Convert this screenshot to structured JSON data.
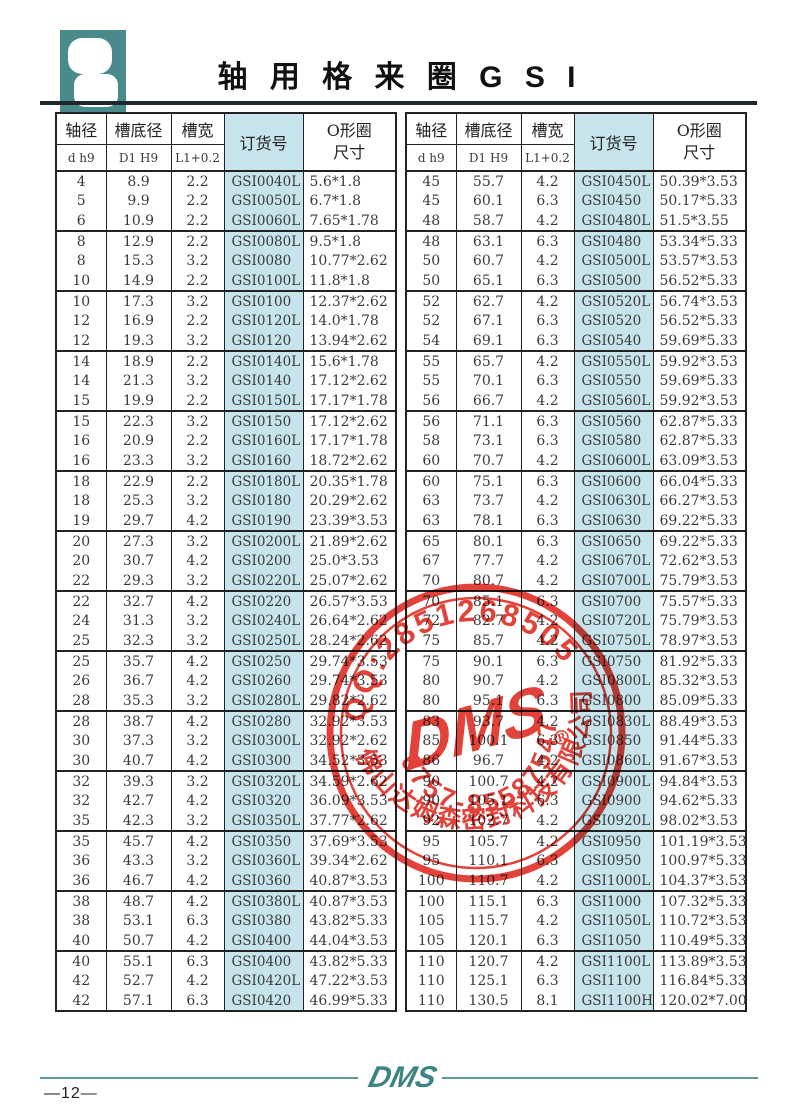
{
  "page": {
    "title": "轴 用 格 来 圈 G S I",
    "page_number": "—12—"
  },
  "columns": {
    "shaft_dia": "轴径",
    "shaft_dia_sub": "d h9",
    "groove_bottom_dia": "槽底径",
    "groove_bottom_dia_sub": "D1 H9",
    "groove_width": "槽宽",
    "groove_width_sub": "L1+0.2",
    "order_no": "订货号",
    "oring_line1": "O形圈",
    "oring_line2": "尺寸"
  },
  "colors": {
    "accent_teal": "#4a8a8a",
    "order_col_bg": "#c7e3eb",
    "stamp_red": "#dd2016",
    "rule_dark": "#20262b"
  },
  "stamp": {
    "qq": "QQ:2851268505",
    "company": "佛山达姆森密封科技有限公司",
    "phone": "0757-85587547",
    "logo": "DMS",
    "registered": "®"
  },
  "footer": {
    "logo": "DMS"
  },
  "tables": {
    "left": {
      "groups": [
        [
          [
            "4",
            "8.9",
            "2.2",
            "GSI0040L",
            "5.6*1.8"
          ],
          [
            "5",
            "9.9",
            "2.2",
            "GSI0050L",
            "6.7*1.8"
          ],
          [
            "6",
            "10.9",
            "2.2",
            "GSI0060L",
            "7.65*1.78"
          ]
        ],
        [
          [
            "8",
            "12.9",
            "2.2",
            "GSI0080L",
            "9.5*1.8"
          ],
          [
            "8",
            "15.3",
            "3.2",
            "GSI0080",
            "10.77*2.62"
          ],
          [
            "10",
            "14.9",
            "2.2",
            "GSI0100L",
            "11.8*1.8"
          ]
        ],
        [
          [
            "10",
            "17.3",
            "3.2",
            "GSI0100",
            "12.37*2.62"
          ],
          [
            "12",
            "16.9",
            "2.2",
            "GSI0120L",
            "14.0*1.78"
          ],
          [
            "12",
            "19.3",
            "3.2",
            "GSI0120",
            "13.94*2.62"
          ]
        ],
        [
          [
            "14",
            "18.9",
            "2.2",
            "GSI0140L",
            "15.6*1.78"
          ],
          [
            "14",
            "21.3",
            "3.2",
            "GSI0140",
            "17.12*2.62"
          ],
          [
            "15",
            "19.9",
            "2.2",
            "GSI0150L",
            "17.17*1.78"
          ]
        ],
        [
          [
            "15",
            "22.3",
            "3.2",
            "GSI0150",
            "17.12*2.62"
          ],
          [
            "16",
            "20.9",
            "2.2",
            "GSI0160L",
            "17.17*1.78"
          ],
          [
            "16",
            "23.3",
            "3.2",
            "GSI0160",
            "18.72*2.62"
          ]
        ],
        [
          [
            "18",
            "22.9",
            "2.2",
            "GSI0180L",
            "20.35*1.78"
          ],
          [
            "18",
            "25.3",
            "3.2",
            "GSI0180",
            "20.29*2.62"
          ],
          [
            "19",
            "29.7",
            "4.2",
            "GSI0190",
            "23.39*3.53"
          ]
        ],
        [
          [
            "20",
            "27.3",
            "3.2",
            "GSI0200L",
            "21.89*2.62"
          ],
          [
            "20",
            "30.7",
            "4.2",
            "GSI0200",
            "25.0*3.53"
          ],
          [
            "22",
            "29.3",
            "3.2",
            "GSI0220L",
            "25.07*2.62"
          ]
        ],
        [
          [
            "22",
            "32.7",
            "4.2",
            "GSI0220",
            "26.57*3.53"
          ],
          [
            "24",
            "31.3",
            "3.2",
            "GSI0240L",
            "26.64*2.62"
          ],
          [
            "25",
            "32.3",
            "3.2",
            "GSI0250L",
            "28.24*2.62"
          ]
        ],
        [
          [
            "25",
            "35.7",
            "4.2",
            "GSI0250",
            "29.74*3.53"
          ],
          [
            "26",
            "36.7",
            "4.2",
            "GSI0260",
            "29.74*3.53"
          ],
          [
            "28",
            "35.3",
            "3.2",
            "GSI0280L",
            "29.82*2.62"
          ]
        ],
        [
          [
            "28",
            "38.7",
            "4.2",
            "GSI0280",
            "32.92*3.53"
          ],
          [
            "30",
            "37.3",
            "3.2",
            "GSI0300L",
            "32.92*2.62"
          ],
          [
            "30",
            "40.7",
            "4.2",
            "GSI0300",
            "34.52*3.53"
          ]
        ],
        [
          [
            "32",
            "39.3",
            "3.2",
            "GSI0320L",
            "34.59*2.62"
          ],
          [
            "32",
            "42.7",
            "4.2",
            "GSI0320",
            "36.09*3.53"
          ],
          [
            "35",
            "42.3",
            "3.2",
            "GSI0350L",
            "37.77*2.62"
          ]
        ],
        [
          [
            "35",
            "45.7",
            "4.2",
            "GSI0350",
            "37.69*3.53"
          ],
          [
            "36",
            "43.3",
            "3.2",
            "GSI0360L",
            "39.34*2.62"
          ],
          [
            "36",
            "46.7",
            "4.2",
            "GSI0360",
            "40.87*3.53"
          ]
        ],
        [
          [
            "38",
            "48.7",
            "4.2",
            "GSI0380L",
            "40.87*3.53"
          ],
          [
            "38",
            "53.1",
            "6.3",
            "GSI0380",
            "43.82*5.33"
          ],
          [
            "40",
            "50.7",
            "4.2",
            "GSI0400",
            "44.04*3.53"
          ]
        ],
        [
          [
            "40",
            "55.1",
            "6.3",
            "GSI0400",
            "43.82*5.33"
          ],
          [
            "42",
            "52.7",
            "4.2",
            "GSI0420L",
            "47.22*3.53"
          ],
          [
            "42",
            "57.1",
            "6.3",
            "GSI0420",
            "46.99*5.33"
          ]
        ]
      ]
    },
    "right": {
      "groups": [
        [
          [
            "45",
            "55.7",
            "4.2",
            "GSI0450L",
            "50.39*3.53"
          ],
          [
            "45",
            "60.1",
            "6.3",
            "GSI0450",
            "50.17*5.33"
          ],
          [
            "48",
            "58.7",
            "4.2",
            "GSI0480L",
            "51.5*3.55"
          ]
        ],
        [
          [
            "48",
            "63.1",
            "6.3",
            "GSI0480",
            "53.34*5.33"
          ],
          [
            "50",
            "60.7",
            "4.2",
            "GSI0500L",
            "53.57*3.53"
          ],
          [
            "50",
            "65.1",
            "6.3",
            "GSI0500",
            "56.52*5.33"
          ]
        ],
        [
          [
            "52",
            "62.7",
            "4.2",
            "GSI0520L",
            "56.74*3.53"
          ],
          [
            "52",
            "67.1",
            "6.3",
            "GSI0520",
            "56.52*5.33"
          ],
          [
            "54",
            "69.1",
            "6.3",
            "GSI0540",
            "59.69*5.33"
          ]
        ],
        [
          [
            "55",
            "65.7",
            "4.2",
            "GSI0550L",
            "59.92*3.53"
          ],
          [
            "55",
            "70.1",
            "6.3",
            "GSI0550",
            "59.69*5.33"
          ],
          [
            "56",
            "66.7",
            "4.2",
            "GSI0560L",
            "59.92*3.53"
          ]
        ],
        [
          [
            "56",
            "71.1",
            "6.3",
            "GSI0560",
            "62.87*5.33"
          ],
          [
            "58",
            "73.1",
            "6.3",
            "GSI0580",
            "62.87*5.33"
          ],
          [
            "60",
            "70.7",
            "4.2",
            "GSI0600L",
            "63.09*3.53"
          ]
        ],
        [
          [
            "60",
            "75.1",
            "6.3",
            "GSI0600",
            "66.04*5.33"
          ],
          [
            "63",
            "73.7",
            "4.2",
            "GSI0630L",
            "66.27*3.53"
          ],
          [
            "63",
            "78.1",
            "6.3",
            "GSI0630",
            "69.22*5.33"
          ]
        ],
        [
          [
            "65",
            "80.1",
            "6.3",
            "GSI0650",
            "69.22*5.33"
          ],
          [
            "67",
            "77.7",
            "4.2",
            "GSI0670L",
            "72.62*3.53"
          ],
          [
            "70",
            "80.7",
            "4.2",
            "GSI0700L",
            "75.79*3.53"
          ]
        ],
        [
          [
            "70",
            "85.1",
            "6.3",
            "GSI0700",
            "75.57*5.33"
          ],
          [
            "72",
            "82.7",
            "4.2",
            "GSI0720L",
            "75.79*3.53"
          ],
          [
            "75",
            "85.7",
            "4.2",
            "GSI0750L",
            "78.97*3.53"
          ]
        ],
        [
          [
            "75",
            "90.1",
            "6.3",
            "GSI0750",
            "81.92*5.33"
          ],
          [
            "80",
            "90.7",
            "4.2",
            "GSI0800L",
            "85.32*3.53"
          ],
          [
            "80",
            "95.1",
            "6.3",
            "GSI0800",
            "85.09*5.33"
          ]
        ],
        [
          [
            "83",
            "93.7",
            "4.2",
            "GSI0830L",
            "88.49*3.53"
          ],
          [
            "85",
            "100.1",
            "6.3",
            "GSI0850",
            "91.44*5.33"
          ],
          [
            "86",
            "96.7",
            "4.2",
            "GSI0860L",
            "91.67*3.53"
          ]
        ],
        [
          [
            "90",
            "100.7",
            "4.2",
            "GSI0900L",
            "94.84*3.53"
          ],
          [
            "90",
            "105.1",
            "6.3",
            "GSI0900",
            "94.62*5.33"
          ],
          [
            "92",
            "102.7",
            "4.2",
            "GSI0920L",
            "98.02*3.53"
          ]
        ],
        [
          [
            "95",
            "105.7",
            "4.2",
            "GSI0950",
            "101.19*3.53"
          ],
          [
            "95",
            "110.1",
            "6.3",
            "GSI0950",
            "100.97*5.33"
          ],
          [
            "100",
            "110.7",
            "4.2",
            "GSI1000L",
            "104.37*3.53"
          ]
        ],
        [
          [
            "100",
            "115.1",
            "6.3",
            "GSI1000",
            "107.32*5.33"
          ],
          [
            "105",
            "115.7",
            "4.2",
            "GSI1050L",
            "110.72*3.53"
          ],
          [
            "105",
            "120.1",
            "6.3",
            "GSI1050",
            "110.49*5.33"
          ]
        ],
        [
          [
            "110",
            "120.7",
            "4.2",
            "GSI1100L",
            "113.89*3.53"
          ],
          [
            "110",
            "125.1",
            "6.3",
            "GSI1100",
            "116.84*5.33"
          ],
          [
            "110",
            "130.5",
            "8.1",
            "GSI1100H",
            "120.02*7.00"
          ]
        ]
      ]
    }
  }
}
